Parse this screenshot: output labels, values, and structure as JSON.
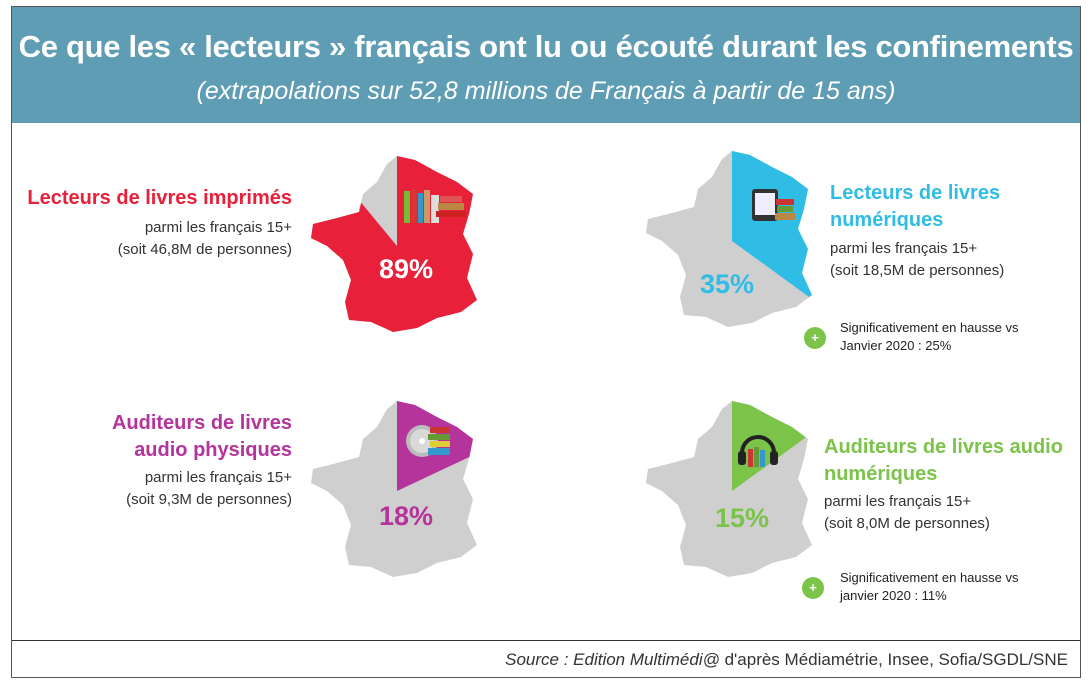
{
  "header": {
    "title": "Ce que les « lecteurs » français ont lu ou écouté durant les confinements",
    "subtitle": "(extrapolations sur 52,8 millions de Français à partir de 15 ans)"
  },
  "colors": {
    "header_bg": "#5f9db4",
    "printed": "#e8203a",
    "digital": "#2fbde6",
    "audio_physical": "#b5349b",
    "audio_digital": "#7cc34a",
    "map_gray": "#cfcfcf"
  },
  "chart_data": {
    "type": "pie",
    "categories": [
      "Lecteurs de livres imprimés",
      "Lecteurs de livres numériques",
      "Auditeurs de livres audio physiques",
      "Auditeurs de livres audio numériques"
    ],
    "values": [
      89,
      35,
      18,
      15
    ],
    "unit": "%"
  },
  "panels": [
    {
      "title_l1": "Lecteurs de livres imprimés",
      "title_l2": "",
      "sub1": "parmi les français 15+",
      "sub2": "(soit 46,8M de personnes)",
      "percent_label": "89%",
      "icon": "books-icon"
    },
    {
      "title_l1": "Lecteurs de livres",
      "title_l2": "numériques",
      "sub1": "parmi les français 15+",
      "sub2": "(soit 18,5M de personnes)",
      "percent_label": "35%",
      "icon": "ebook-icon",
      "note_l1": "Significativement en hausse vs",
      "note_l2": "Janvier 2020 : 25%",
      "note_badge": "+"
    },
    {
      "title_l1": "Auditeurs de livres",
      "title_l2": "audio physiques",
      "sub1": "parmi les français 15+",
      "sub2": "(soit 9,3M de personnes)",
      "percent_label": "18%",
      "icon": "cd-icon"
    },
    {
      "title_l1": "Auditeurs de livres audio",
      "title_l2": "numériques",
      "sub1": "parmi les français 15+",
      "sub2": "(soit 8,0M de personnes)",
      "percent_label": "15%",
      "icon": "headphones-icon",
      "note_l1": "Significativement en hausse vs",
      "note_l2": "janvier 2020 : 11%",
      "note_badge": "+"
    }
  ],
  "footer": {
    "source_italic": "Source : Edition Multimédi@",
    "source_rest": " d'après Médiamétrie, Insee, Sofia/SGDL/SNE"
  }
}
